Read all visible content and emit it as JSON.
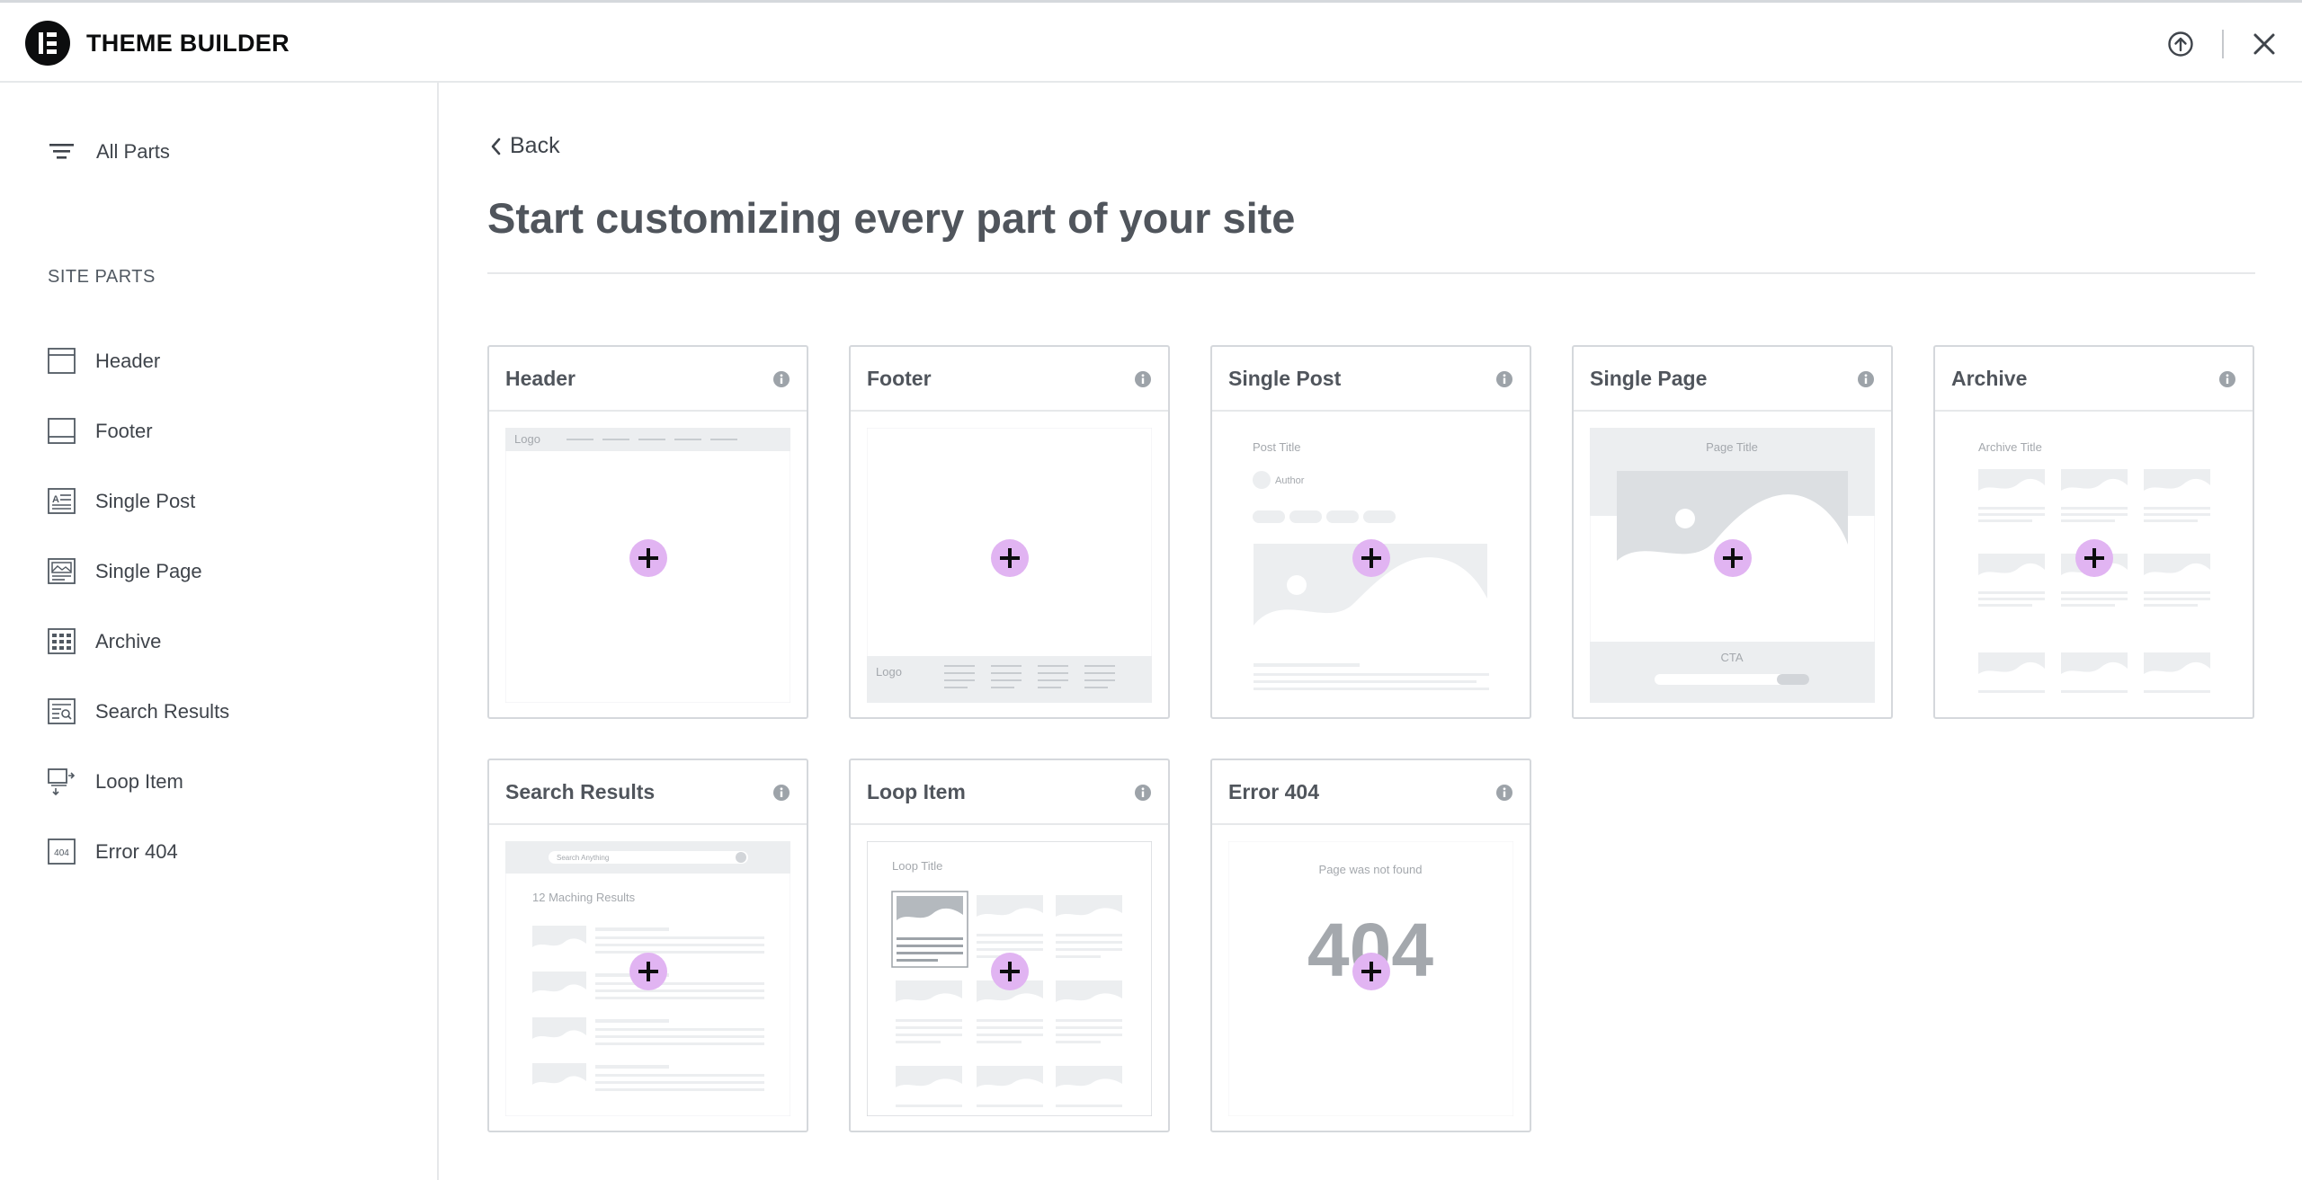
{
  "app": {
    "title": "THEME BUILDER"
  },
  "topbar": {
    "upload_icon": "upload-icon",
    "close_icon": "close-icon"
  },
  "sidebar": {
    "all_parts_label": "All Parts",
    "section_label": "SITE PARTS",
    "items": [
      {
        "label": "Header",
        "icon": "header-layout-icon"
      },
      {
        "label": "Footer",
        "icon": "footer-layout-icon"
      },
      {
        "label": "Single Post",
        "icon": "single-post-icon"
      },
      {
        "label": "Single Page",
        "icon": "single-page-icon"
      },
      {
        "label": "Archive",
        "icon": "archive-icon"
      },
      {
        "label": "Search Results",
        "icon": "search-results-icon"
      },
      {
        "label": "Loop Item",
        "icon": "loop-item-icon"
      },
      {
        "label": "Error 404",
        "icon": "error-404-icon"
      }
    ]
  },
  "main": {
    "back_label": "Back",
    "title": "Start customizing every part of your site",
    "cards": [
      {
        "title": "Header",
        "preview": {
          "logo": "Logo"
        }
      },
      {
        "title": "Footer",
        "preview": {
          "logo": "Logo"
        }
      },
      {
        "title": "Single Post",
        "preview": {
          "post_title": "Post Title",
          "author": "Author"
        }
      },
      {
        "title": "Single Page",
        "preview": {
          "page_title": "Page Title",
          "cta": "CTA"
        }
      },
      {
        "title": "Archive",
        "preview": {
          "archive_title": "Archive Title"
        }
      },
      {
        "title": "Search Results",
        "preview": {
          "search_placeholder": "Search Anything",
          "results_count": "12 Maching Results"
        }
      },
      {
        "title": "Loop Item",
        "preview": {
          "loop_title": "Loop Title"
        }
      },
      {
        "title": "Error 404",
        "preview": {
          "message": "Page was not found",
          "code": "404"
        }
      }
    ]
  },
  "colors": {
    "accent_plus": "#e1b4f2",
    "brand_dark": "#0c0d0e"
  }
}
